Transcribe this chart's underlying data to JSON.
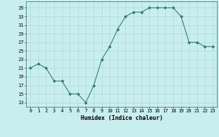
{
  "x": [
    0,
    1,
    2,
    3,
    4,
    5,
    6,
    7,
    8,
    9,
    10,
    11,
    12,
    13,
    14,
    15,
    16,
    17,
    18,
    19,
    20,
    21,
    22,
    23
  ],
  "y": [
    21,
    22,
    21,
    18,
    18,
    15,
    15,
    13,
    17,
    23,
    26,
    30,
    33,
    34,
    34,
    35,
    35,
    35,
    35,
    33,
    27,
    27,
    26,
    26
  ],
  "line_color": "#2e7d6e",
  "marker_color": "#2e7d6e",
  "bg_color": "#c8eef0",
  "grid_color": "#b0d8d8",
  "xlabel": "Humidex (Indice chaleur)",
  "ylabel_ticks": [
    13,
    15,
    17,
    19,
    21,
    23,
    25,
    27,
    29,
    31,
    33,
    35
  ],
  "xtick_labels": [
    "0",
    "1",
    "2",
    "3",
    "4",
    "5",
    "6",
    "7",
    "8",
    "9",
    "10",
    "11",
    "12",
    "13",
    "14",
    "15",
    "16",
    "17",
    "18",
    "19",
    "20",
    "21",
    "22",
    "23"
  ],
  "xlim": [
    -0.5,
    23.5
  ],
  "ylim": [
    12,
    36.5
  ]
}
